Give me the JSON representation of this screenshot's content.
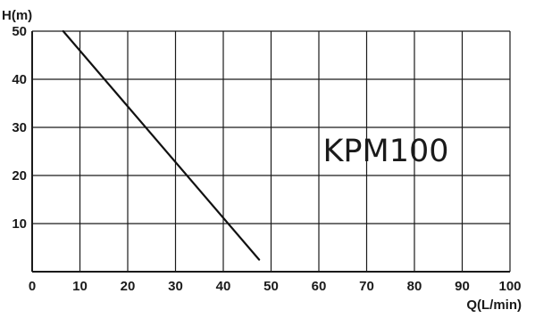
{
  "chart_data": {
    "type": "line",
    "title": "",
    "xlabel": "Q(L/min)",
    "ylabel": "H(m)",
    "xlim": [
      0,
      100
    ],
    "ylim": [
      0,
      50
    ],
    "x_ticks": [
      0,
      10,
      20,
      30,
      40,
      50,
      60,
      70,
      80,
      90,
      100
    ],
    "y_ticks": [
      10,
      20,
      30,
      40,
      50
    ],
    "x_tick_labels": [
      "0",
      "10",
      "20",
      "30",
      "40",
      "50",
      "60",
      "70",
      "80",
      "90",
      "100"
    ],
    "y_tick_labels": [
      "10",
      "20",
      "30",
      "40",
      "50"
    ],
    "grid": true,
    "annotation": "KPM100",
    "series": [
      {
        "x": [
          6.5,
          47.5
        ],
        "y": [
          50,
          2.5
        ]
      }
    ]
  },
  "colors": {
    "grid": "#1a1a1a",
    "axis": "#1a1a1a",
    "curve": "#111111",
    "background": "#ffffff"
  }
}
